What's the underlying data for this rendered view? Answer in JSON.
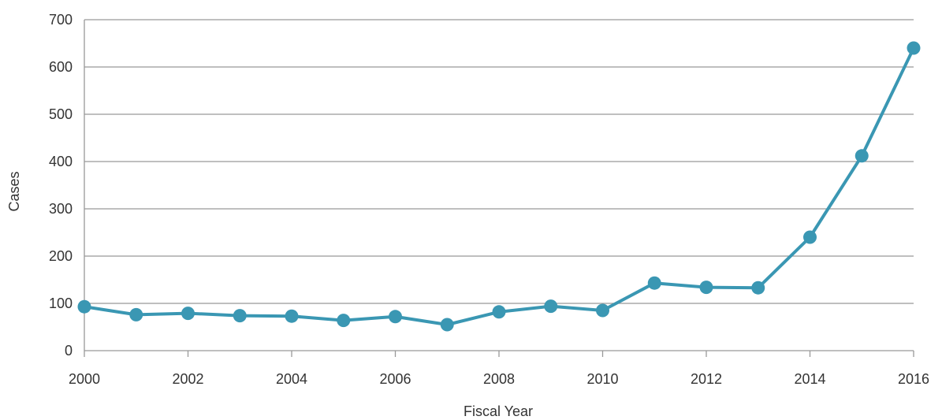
{
  "chart_data": {
    "type": "line",
    "xlabel": "Fiscal Year",
    "ylabel": "Cases",
    "xlim": [
      2000,
      2016
    ],
    "ylim": [
      0,
      700
    ],
    "yticks": [
      0,
      100,
      200,
      300,
      400,
      500,
      600,
      700
    ],
    "xticks": [
      2000,
      2002,
      2004,
      2006,
      2008,
      2010,
      2012,
      2014,
      2016
    ],
    "grid": true,
    "legend": "none",
    "series": [
      {
        "color": "#3a97b3",
        "x": [
          2000,
          2001,
          2002,
          2003,
          2004,
          2005,
          2006,
          2007,
          2008,
          2009,
          2010,
          2011,
          2012,
          2013,
          2014,
          2015,
          2016
        ],
        "y": [
          93,
          76,
          79,
          74,
          73,
          64,
          72,
          55,
          82,
          94,
          85,
          143,
          134,
          133,
          240,
          412,
          640
        ]
      }
    ]
  }
}
